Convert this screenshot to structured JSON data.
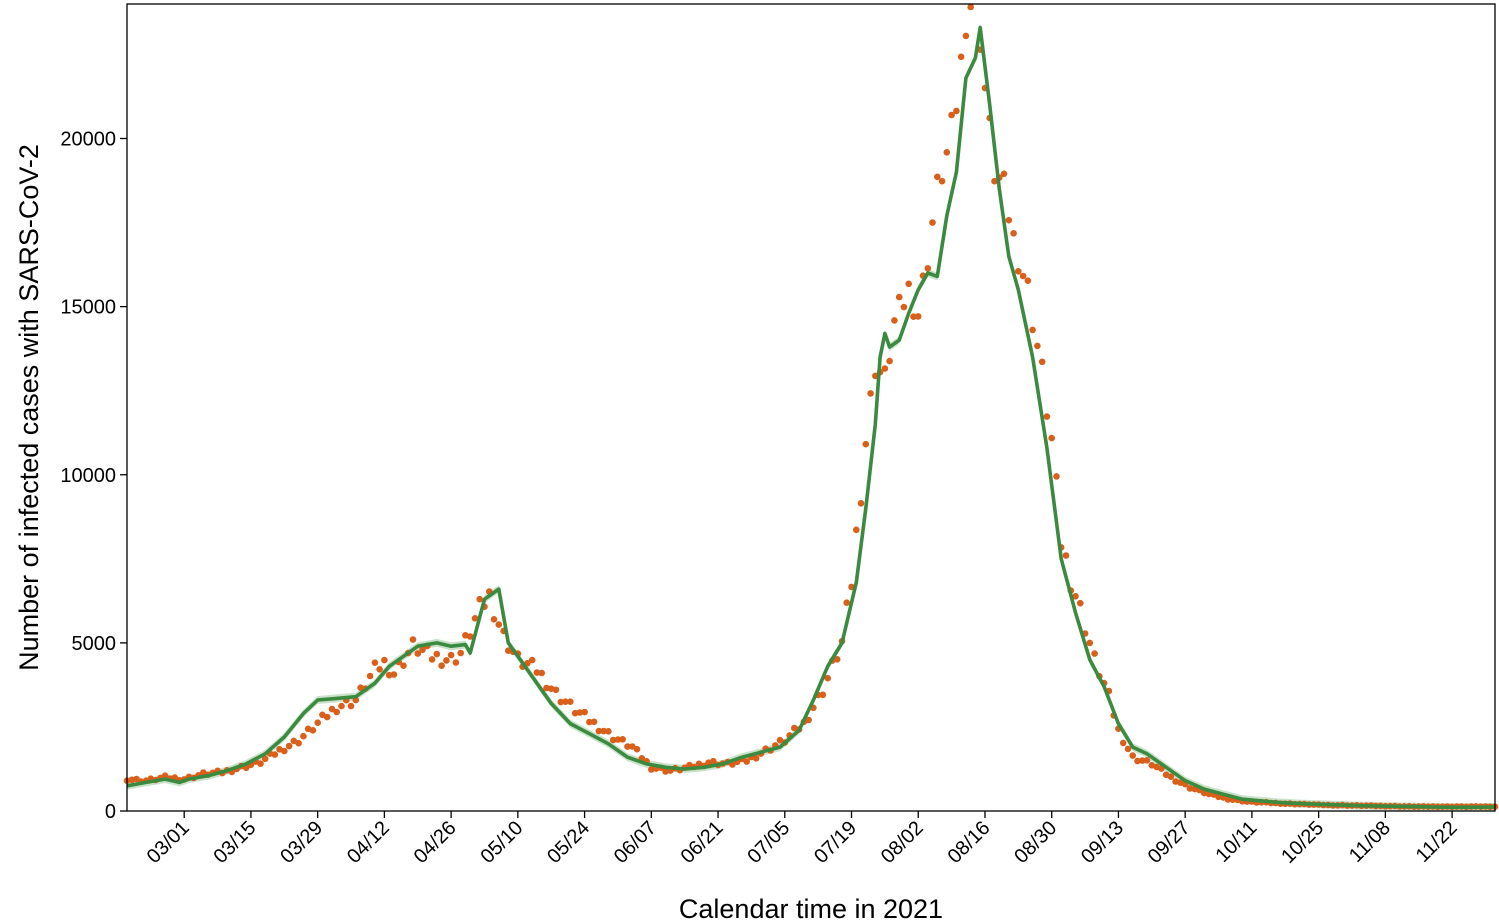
{
  "chart_data": {
    "type": "line",
    "title": "",
    "xlabel": "Calendar time in 2021",
    "ylabel": "Number of infected cases with SARS-CoV-2",
    "x_type": "date",
    "xlim": [
      "2021-02-17",
      "2021-12-01"
    ],
    "ylim": [
      0,
      24000
    ],
    "grid": false,
    "legend": "none",
    "x_ticks": [
      "2021-03-01",
      "2021-03-15",
      "2021-03-29",
      "2021-04-12",
      "2021-04-26",
      "2021-05-10",
      "2021-05-24",
      "2021-06-07",
      "2021-06-21",
      "2021-07-05",
      "2021-07-19",
      "2021-08-02",
      "2021-08-16",
      "2021-08-30",
      "2021-09-13",
      "2021-09-27",
      "2021-10-11",
      "2021-10-25",
      "2021-11-08",
      "2021-11-22"
    ],
    "x_tick_labels": [
      "03/01",
      "03/15",
      "03/29",
      "04/12",
      "04/26",
      "05/10",
      "05/24",
      "06/07",
      "06/21",
      "07/05",
      "07/19",
      "08/02",
      "08/16",
      "08/30",
      "09/13",
      "09/27",
      "10/11",
      "10/25",
      "11/08",
      "11/22"
    ],
    "y_ticks": [
      0,
      5000,
      10000,
      15000,
      20000
    ],
    "y_tick_labels": [
      "0",
      "5000",
      "10000",
      "15000",
      "20000"
    ],
    "colors": {
      "observed": "#d95f1a",
      "fitted": "#3a8a3f",
      "band": "#a8cfa6"
    },
    "series": [
      {
        "kind": "points",
        "x": [
          "2021-02-17",
          "2021-02-21",
          "2021-02-25",
          "2021-03-01",
          "2021-03-05",
          "2021-03-09",
          "2021-03-13",
          "2021-03-17",
          "2021-03-21",
          "2021-03-25",
          "2021-03-29",
          "2021-04-02",
          "2021-04-06",
          "2021-04-10",
          "2021-04-12",
          "2021-04-14",
          "2021-04-18",
          "2021-04-22",
          "2021-04-26",
          "2021-04-28",
          "2021-05-02",
          "2021-05-04",
          "2021-05-07",
          "2021-05-10",
          "2021-05-14",
          "2021-05-18",
          "2021-05-22",
          "2021-05-26",
          "2021-05-30",
          "2021-06-03",
          "2021-06-07",
          "2021-06-11",
          "2021-06-15",
          "2021-06-19",
          "2021-06-23",
          "2021-06-27",
          "2021-07-01",
          "2021-07-05",
          "2021-07-09",
          "2021-07-13",
          "2021-07-17",
          "2021-07-19",
          "2021-07-22",
          "2021-07-24",
          "2021-07-26",
          "2021-07-28",
          "2021-07-31",
          "2021-08-02",
          "2021-08-04",
          "2021-08-06",
          "2021-08-08",
          "2021-08-10",
          "2021-08-12",
          "2021-08-14",
          "2021-08-16",
          "2021-08-18",
          "2021-08-20",
          "2021-08-22",
          "2021-08-25",
          "2021-08-28",
          "2021-08-30",
          "2021-09-01",
          "2021-09-03",
          "2021-09-05",
          "2021-09-08",
          "2021-09-11",
          "2021-09-13",
          "2021-09-16",
          "2021-09-20",
          "2021-09-24",
          "2021-09-28",
          "2021-10-02",
          "2021-10-06",
          "2021-10-10",
          "2021-10-14",
          "2021-10-18",
          "2021-10-22",
          "2021-10-26",
          "2021-10-30",
          "2021-11-03",
          "2021-11-07",
          "2021-11-11",
          "2021-11-15",
          "2021-11-19",
          "2021-11-23",
          "2021-11-27",
          "2021-12-01"
        ],
        "y": [
          950,
          900,
          1000,
          950,
          1100,
          1150,
          1300,
          1450,
          1800,
          2100,
          2600,
          3100,
          3300,
          4200,
          4400,
          4100,
          4900,
          4600,
          4500,
          4700,
          6000,
          6400,
          5200,
          4500,
          4200,
          3500,
          3000,
          2600,
          2200,
          1900,
          1300,
          1200,
          1300,
          1450,
          1400,
          1500,
          1800,
          2100,
          2600,
          3600,
          5000,
          6800,
          11000,
          13300,
          12800,
          14500,
          15500,
          14800,
          16500,
          18500,
          19500,
          21000,
          23500,
          24500,
          21500,
          19000,
          18500,
          17000,
          15500,
          13000,
          11000,
          8000,
          6900,
          6000,
          4500,
          3400,
          2400,
          1600,
          1400,
          1000,
          700,
          500,
          360,
          280,
          250,
          220,
          200,
          180,
          170,
          160,
          150,
          140,
          130,
          130,
          130,
          130,
          130
        ]
      },
      {
        "kind": "line",
        "x": [
          "2021-02-17",
          "2021-02-21",
          "2021-02-25",
          "2021-02-28",
          "2021-03-02",
          "2021-03-06",
          "2021-03-10",
          "2021-03-14",
          "2021-03-18",
          "2021-03-22",
          "2021-03-26",
          "2021-03-29",
          "2021-04-02",
          "2021-04-06",
          "2021-04-10",
          "2021-04-13",
          "2021-04-16",
          "2021-04-19",
          "2021-04-23",
          "2021-04-26",
          "2021-04-29",
          "2021-04-30",
          "2021-05-03",
          "2021-05-06",
          "2021-05-08",
          "2021-05-10",
          "2021-05-13",
          "2021-05-17",
          "2021-05-21",
          "2021-05-25",
          "2021-05-29",
          "2021-06-02",
          "2021-06-06",
          "2021-06-10",
          "2021-06-14",
          "2021-06-18",
          "2021-06-22",
          "2021-06-26",
          "2021-06-30",
          "2021-07-04",
          "2021-07-08",
          "2021-07-11",
          "2021-07-14",
          "2021-07-17",
          "2021-07-20",
          "2021-07-22",
          "2021-07-24",
          "2021-07-25",
          "2021-07-26",
          "2021-07-27",
          "2021-07-29",
          "2021-07-31",
          "2021-08-02",
          "2021-08-04",
          "2021-08-06",
          "2021-08-08",
          "2021-08-10",
          "2021-08-12",
          "2021-08-14",
          "2021-08-15",
          "2021-08-17",
          "2021-08-19",
          "2021-08-21",
          "2021-08-23",
          "2021-08-26",
          "2021-08-29",
          "2021-09-01",
          "2021-09-04",
          "2021-09-07",
          "2021-09-10",
          "2021-09-13",
          "2021-09-16",
          "2021-09-19",
          "2021-09-23",
          "2021-09-27",
          "2021-10-01",
          "2021-10-05",
          "2021-10-09",
          "2021-10-13",
          "2021-10-17",
          "2021-10-21",
          "2021-10-25",
          "2021-10-29",
          "2021-11-02",
          "2021-11-06",
          "2021-11-10",
          "2021-11-14",
          "2021-11-18",
          "2021-11-22",
          "2021-11-26",
          "2021-12-01"
        ],
        "y": [
          750,
          850,
          950,
          850,
          950,
          1050,
          1200,
          1400,
          1700,
          2200,
          2900,
          3300,
          3350,
          3400,
          3800,
          4300,
          4600,
          4900,
          5000,
          4900,
          4950,
          4700,
          6300,
          6600,
          5000,
          4600,
          4000,
          3200,
          2600,
          2300,
          2000,
          1600,
          1400,
          1300,
          1250,
          1300,
          1400,
          1600,
          1750,
          1900,
          2400,
          3300,
          4300,
          5000,
          6800,
          9000,
          11500,
          13500,
          14200,
          13800,
          14000,
          14800,
          15500,
          16000,
          15900,
          17700,
          19000,
          21800,
          22400,
          23300,
          21000,
          18500,
          16500,
          15500,
          13500,
          10800,
          7500,
          5900,
          4500,
          3700,
          2600,
          1900,
          1700,
          1300,
          900,
          650,
          500,
          350,
          300,
          250,
          220,
          200,
          180,
          160,
          150,
          140,
          130,
          120,
          110,
          110,
          120
        ]
      }
    ]
  }
}
